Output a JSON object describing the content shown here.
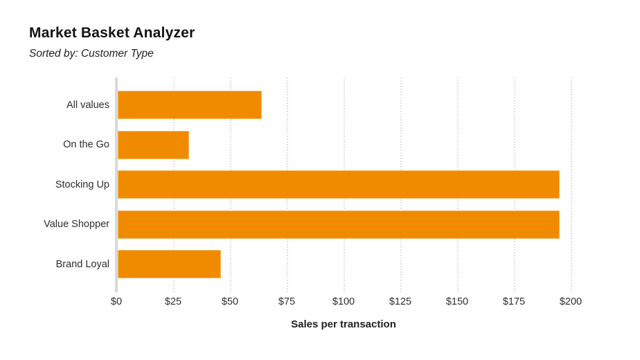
{
  "chart_data": {
    "type": "bar",
    "orientation": "horizontal",
    "title": "Market Basket Analyzer",
    "subtitle": "Sorted by: Customer Type",
    "categories": [
      "All values",
      "On the Go",
      "Stocking Up",
      "Value Shopper",
      "Brand Loyal"
    ],
    "values": [
      64,
      32,
      195,
      195,
      46
    ],
    "value_unit": "USD",
    "xlabel": "Sales per transaction",
    "ylabel": "",
    "xlim": [
      0,
      200
    ],
    "xticks": [
      0,
      25,
      50,
      75,
      100,
      125,
      150,
      175,
      200
    ],
    "xtick_labels": [
      "$0",
      "$25",
      "$50",
      "$75",
      "$100",
      "$125",
      "$150",
      "$175",
      "$200"
    ],
    "grid": "vertical-dotted",
    "legend": "none",
    "colors": {
      "bar_fill": "#F08B00",
      "bar_rim": "#F6BB66",
      "gridline": "#e0e0e0",
      "zero_axis": "#d9d9d9",
      "text": "#1e1e1e",
      "background": "#ffffff"
    }
  }
}
